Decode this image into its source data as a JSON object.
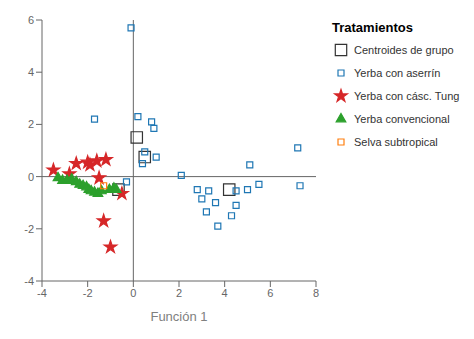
{
  "chart_data": {
    "type": "scatter",
    "xlabel": "Función 1",
    "xlim": [
      -4,
      8
    ],
    "ylim": [
      -4,
      6
    ],
    "xticks": [
      -4,
      -2,
      0,
      2,
      4,
      6,
      8
    ],
    "yticks": [
      -4,
      -2,
      0,
      2,
      4,
      6
    ],
    "grid": false,
    "legend": "right",
    "legend_title": "Tratamientos",
    "hlines": [
      0
    ],
    "vlines": [
      0
    ],
    "series": [
      {
        "name": "Centroides de grupo",
        "color": "#333333",
        "marker": "square_large",
        "values": [
          [
            0.15,
            1.5
          ],
          [
            0.5,
            0.75
          ],
          [
            -0.65,
            -0.5
          ],
          [
            4.2,
            -0.5
          ]
        ]
      },
      {
        "name": "Yerba con aserrín",
        "color": "#1f77b4",
        "marker": "square",
        "values": [
          [
            -0.1,
            5.7
          ],
          [
            -1.7,
            2.2
          ],
          [
            0.2,
            2.3
          ],
          [
            0.8,
            2.1
          ],
          [
            0.9,
            1.85
          ],
          [
            0.5,
            0.95
          ],
          [
            0.4,
            0.5
          ],
          [
            1.0,
            0.75
          ],
          [
            7.2,
            1.1
          ],
          [
            -0.3,
            -0.2
          ],
          [
            2.1,
            0.05
          ],
          [
            5.1,
            0.45
          ],
          [
            2.8,
            -0.5
          ],
          [
            3.3,
            -0.55
          ],
          [
            4.5,
            -0.55
          ],
          [
            5.5,
            -0.3
          ],
          [
            5.0,
            -0.5
          ],
          [
            3.0,
            -0.85
          ],
          [
            3.6,
            -1.0
          ],
          [
            4.5,
            -1.1
          ],
          [
            4.3,
            -1.5
          ],
          [
            3.2,
            -1.35
          ],
          [
            3.7,
            -1.9
          ],
          [
            7.3,
            -0.35
          ]
        ]
      },
      {
        "name": "Yerba con cásc. Tung",
        "color": "#d62728",
        "marker": "asterisk",
        "values": [
          [
            -3.5,
            0.25
          ],
          [
            -2.8,
            0.1
          ],
          [
            -2.5,
            0.5
          ],
          [
            -2.0,
            0.55
          ],
          [
            -1.9,
            0.45
          ],
          [
            -1.6,
            0.6
          ],
          [
            -1.2,
            0.65
          ],
          [
            -1.5,
            -0.05
          ],
          [
            -0.5,
            -0.65
          ],
          [
            -1.3,
            -1.7
          ],
          [
            -1.0,
            -2.7
          ]
        ]
      },
      {
        "name": "Yerba convencional",
        "color": "#2ca02c",
        "marker": "triangle",
        "values": [
          [
            -3.3,
            -0.05
          ],
          [
            -3.1,
            -0.15
          ],
          [
            -2.9,
            -0.15
          ],
          [
            -2.7,
            -0.1
          ],
          [
            -2.5,
            -0.2
          ],
          [
            -2.35,
            -0.3
          ],
          [
            -2.2,
            -0.35
          ],
          [
            -2.05,
            -0.4
          ],
          [
            -1.95,
            -0.5
          ],
          [
            -1.85,
            -0.55
          ],
          [
            -1.7,
            -0.6
          ],
          [
            -1.55,
            -0.65
          ],
          [
            -1.4,
            -0.55
          ],
          [
            -0.85,
            -0.45
          ],
          [
            -1.05,
            -0.5
          ],
          [
            -0.75,
            -0.5
          ]
        ]
      },
      {
        "name": "Selva subtropical",
        "color": "#ff7f0e",
        "marker": "square",
        "values": [
          [
            -1.3,
            -0.35
          ]
        ]
      }
    ]
  }
}
